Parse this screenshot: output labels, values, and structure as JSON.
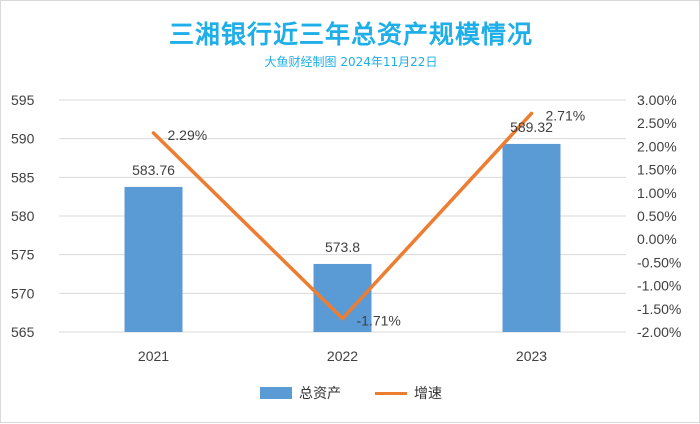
{
  "chart_data": {
    "type": "bar",
    "title": "三湘银行近三年总资产规模情况",
    "subtitle": "大鱼财经制图 2024年11月22日",
    "categories": [
      "2021",
      "2022",
      "2023"
    ],
    "series": [
      {
        "name": "总资产",
        "type": "bar",
        "axis": "left",
        "values": [
          583.76,
          573.8,
          589.32
        ],
        "labels": [
          "583.76",
          "573.8",
          "589.32"
        ],
        "color": "#5b9bd5"
      },
      {
        "name": "增速",
        "type": "line",
        "axis": "right",
        "values": [
          2.29,
          -1.71,
          2.71
        ],
        "labels": [
          "2.29%",
          "-1.71%",
          "2.71%"
        ],
        "color": "#ed7d31"
      }
    ],
    "y_left": {
      "min": 565,
      "max": 595,
      "ticks": [
        "565",
        "570",
        "575",
        "580",
        "585",
        "590",
        "595"
      ]
    },
    "y_right": {
      "min": -2.0,
      "max": 3.0,
      "ticks": [
        "-2.00%",
        "-1.50%",
        "-1.00%",
        "-0.50%",
        "0.00%",
        "0.50%",
        "1.00%",
        "1.50%",
        "2.00%",
        "2.50%",
        "3.00%"
      ]
    },
    "grid": true,
    "legend": "bottom"
  }
}
